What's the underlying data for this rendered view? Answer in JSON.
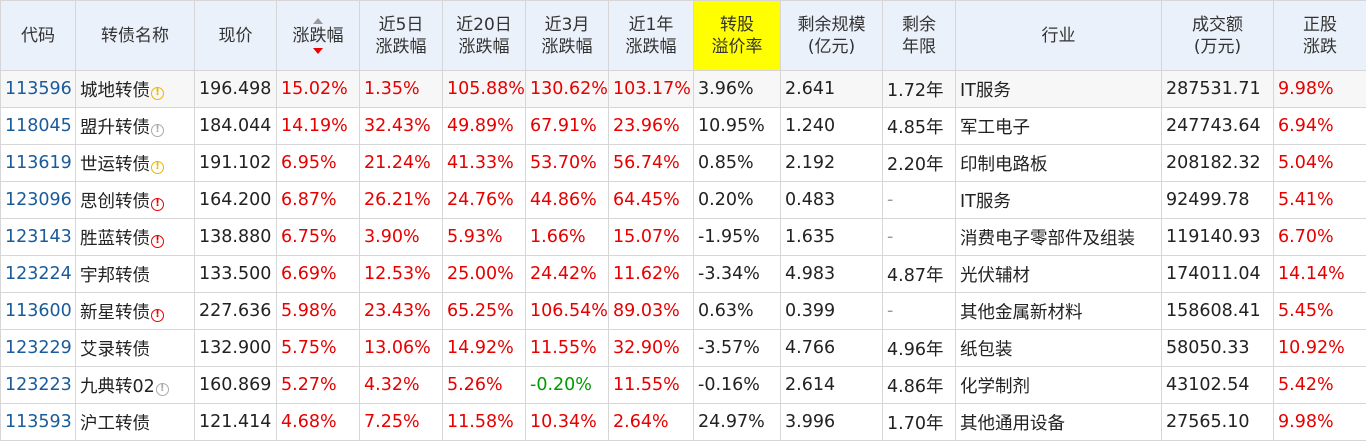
{
  "headers": {
    "code": "代码",
    "name": "转债名称",
    "price": "现价",
    "change": "涨跌幅",
    "chg5d_1": "近5日",
    "chg5d_2": "涨跌幅",
    "chg20d_1": "近20日",
    "chg20d_2": "涨跌幅",
    "chg3m_1": "近3月",
    "chg3m_2": "涨跌幅",
    "chg1y_1": "近1年",
    "chg1y_2": "涨跌幅",
    "premium_1": "转股",
    "premium_2": "溢价率",
    "scale_1": "剩余规模",
    "scale_2": "(亿元)",
    "years_1": "剩余",
    "years_2": "年限",
    "industry": "行业",
    "turnover_1": "成交额",
    "turnover_2": "(万元)",
    "stock_1": "正股",
    "stock_2": "涨跌"
  },
  "icons": {
    "info": "!"
  },
  "colors": {
    "up": "#e60000",
    "down": "#009b00",
    "code": "#1a5b9c",
    "header_bg": "#ebf1fa",
    "highlight": "#ffff00"
  },
  "rows": [
    {
      "code": "113596",
      "name": "城地转债",
      "icon": "yellow",
      "price": "196.498",
      "change": "15.02%",
      "chg5d": "1.35%",
      "chg20d": "105.88%",
      "chg3m": "130.62%",
      "chg1y": "103.17%",
      "premium": "3.96%",
      "scale": "2.641",
      "years": "1.72年",
      "industry": "IT服务",
      "turnover": "287531.71",
      "stock": "9.98%"
    },
    {
      "code": "118045",
      "name": "盟升转债",
      "icon": "gray",
      "price": "184.044",
      "change": "14.19%",
      "chg5d": "32.43%",
      "chg20d": "49.89%",
      "chg3m": "67.91%",
      "chg1y": "23.96%",
      "premium": "10.95%",
      "scale": "1.240",
      "years": "4.85年",
      "industry": "军工电子",
      "turnover": "247743.64",
      "stock": "6.94%"
    },
    {
      "code": "113619",
      "name": "世运转债",
      "icon": "yellow",
      "price": "191.102",
      "change": "6.95%",
      "chg5d": "21.24%",
      "chg20d": "41.33%",
      "chg3m": "53.70%",
      "chg1y": "56.74%",
      "premium": "0.85%",
      "scale": "2.192",
      "years": "2.20年",
      "industry": "印制电路板",
      "turnover": "208182.32",
      "stock": "5.04%"
    },
    {
      "code": "123096",
      "name": "思创转债",
      "icon": "red",
      "price": "164.200",
      "change": "6.87%",
      "chg5d": "26.21%",
      "chg20d": "24.76%",
      "chg3m": "44.86%",
      "chg1y": "64.45%",
      "premium": "0.20%",
      "scale": "0.483",
      "years": "-",
      "industry": "IT服务",
      "turnover": "92499.78",
      "stock": "5.41%"
    },
    {
      "code": "123143",
      "name": "胜蓝转债",
      "icon": "red",
      "price": "138.880",
      "change": "6.75%",
      "chg5d": "3.90%",
      "chg20d": "5.93%",
      "chg3m": "1.66%",
      "chg1y": "15.07%",
      "premium": "-1.95%",
      "scale": "1.635",
      "years": "-",
      "industry": "消费电子零部件及组装",
      "turnover": "119140.93",
      "stock": "6.70%"
    },
    {
      "code": "123224",
      "name": "宇邦转债",
      "icon": "",
      "price": "133.500",
      "change": "6.69%",
      "chg5d": "12.53%",
      "chg20d": "25.00%",
      "chg3m": "24.42%",
      "chg1y": "11.62%",
      "premium": "-3.34%",
      "scale": "4.983",
      "years": "4.87年",
      "industry": "光伏辅材",
      "turnover": "174011.04",
      "stock": "14.14%"
    },
    {
      "code": "113600",
      "name": "新星转债",
      "icon": "red",
      "price": "227.636",
      "change": "5.98%",
      "chg5d": "23.43%",
      "chg20d": "65.25%",
      "chg3m": "106.54%",
      "chg1y": "89.03%",
      "premium": "0.63%",
      "scale": "0.399",
      "years": "-",
      "industry": "其他金属新材料",
      "turnover": "158608.41",
      "stock": "5.45%"
    },
    {
      "code": "123229",
      "name": "艾录转债",
      "icon": "",
      "price": "132.900",
      "change": "5.75%",
      "chg5d": "13.06%",
      "chg20d": "14.92%",
      "chg3m": "11.55%",
      "chg1y": "32.90%",
      "premium": "-3.57%",
      "scale": "4.766",
      "years": "4.96年",
      "industry": "纸包装",
      "turnover": "58050.33",
      "stock": "10.92%"
    },
    {
      "code": "123223",
      "name": "九典转02",
      "icon": "gray",
      "price": "160.869",
      "change": "5.27%",
      "chg5d": "4.32%",
      "chg20d": "5.26%",
      "chg3m": "-0.20%",
      "chg1y": "11.55%",
      "premium": "-0.16%",
      "scale": "2.614",
      "years": "4.86年",
      "industry": "化学制剂",
      "turnover": "43102.54",
      "stock": "5.42%"
    },
    {
      "code": "113593",
      "name": "沪工转债",
      "icon": "",
      "price": "121.414",
      "change": "4.68%",
      "chg5d": "7.25%",
      "chg20d": "11.58%",
      "chg3m": "10.34%",
      "chg1y": "2.64%",
      "premium": "24.97%",
      "scale": "3.996",
      "years": "1.70年",
      "industry": "其他通用设备",
      "turnover": "27565.10",
      "stock": "9.98%"
    }
  ]
}
